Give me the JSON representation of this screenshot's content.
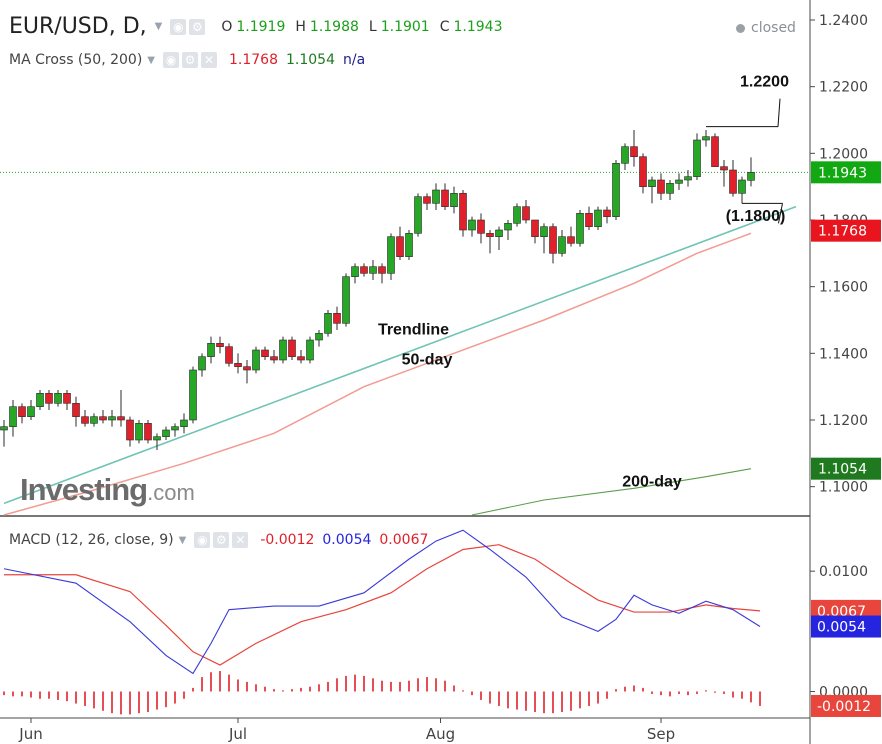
{
  "header": {
    "symbol": "EUR/USD, D,",
    "ohlc": [
      {
        "label": "O",
        "value": "1.1919"
      },
      {
        "label": "H",
        "value": "1.1988"
      },
      {
        "label": "L",
        "value": "1.1901"
      },
      {
        "label": "C",
        "value": "1.1943"
      }
    ],
    "market_status": "closed",
    "ma_indicator": {
      "name": "MA Cross (50, 200)",
      "values": [
        "1.1768",
        "1.1054",
        "n/a"
      ]
    },
    "macd_indicator": {
      "name": "MACD (12, 26, close, 9)",
      "values": [
        "-0.0012",
        "0.0054",
        "0.0067"
      ]
    }
  },
  "watermark": {
    "brand": "Investing",
    "suffix": ".com"
  },
  "colors": {
    "up": "#26a726",
    "down": "#e0212b",
    "trendline": "#6fc4b4",
    "ma50": "#f29b93",
    "ma200": "#5a9e4a",
    "macd": "#3a3ad8",
    "signal": "#e8453c",
    "hist": "#e0212b",
    "price_tag": "#11a811",
    "ma50_tag": "#e8141e",
    "ma200_tag": "#1f7a1f",
    "macd_tag": "#2525e0"
  },
  "chart_data": [
    {
      "type": "candlestick",
      "title": "EUR/USD, D",
      "x_labels": [
        "Jun",
        "Jul",
        "Aug",
        "Sep"
      ],
      "y_ticks": [
        "1.2400",
        "1.2200",
        "1.2000",
        "1.1800",
        "1.1600",
        "1.1400",
        "1.1200",
        "1.1000"
      ],
      "ylim": [
        1.0915,
        1.246
      ],
      "candles": [
        {
          "o": 1.117,
          "h": 1.12,
          "l": 1.112,
          "c": 1.118
        },
        {
          "o": 1.118,
          "h": 1.126,
          "l": 1.115,
          "c": 1.124
        },
        {
          "o": 1.124,
          "h": 1.125,
          "l": 1.119,
          "c": 1.121
        },
        {
          "o": 1.121,
          "h": 1.126,
          "l": 1.12,
          "c": 1.124
        },
        {
          "o": 1.124,
          "h": 1.129,
          "l": 1.123,
          "c": 1.128
        },
        {
          "o": 1.128,
          "h": 1.129,
          "l": 1.123,
          "c": 1.125
        },
        {
          "o": 1.125,
          "h": 1.129,
          "l": 1.124,
          "c": 1.128
        },
        {
          "o": 1.128,
          "h": 1.129,
          "l": 1.123,
          "c": 1.125
        },
        {
          "o": 1.125,
          "h": 1.127,
          "l": 1.118,
          "c": 1.121
        },
        {
          "o": 1.121,
          "h": 1.123,
          "l": 1.118,
          "c": 1.119
        },
        {
          "o": 1.119,
          "h": 1.122,
          "l": 1.118,
          "c": 1.121
        },
        {
          "o": 1.121,
          "h": 1.123,
          "l": 1.119,
          "c": 1.12
        },
        {
          "o": 1.12,
          "h": 1.123,
          "l": 1.118,
          "c": 1.121
        },
        {
          "o": 1.121,
          "h": 1.129,
          "l": 1.118,
          "c": 1.12
        },
        {
          "o": 1.12,
          "h": 1.121,
          "l": 1.112,
          "c": 1.114
        },
        {
          "o": 1.114,
          "h": 1.12,
          "l": 1.113,
          "c": 1.119
        },
        {
          "o": 1.119,
          "h": 1.12,
          "l": 1.113,
          "c": 1.114
        },
        {
          "o": 1.114,
          "h": 1.116,
          "l": 1.111,
          "c": 1.115
        },
        {
          "o": 1.115,
          "h": 1.118,
          "l": 1.114,
          "c": 1.117
        },
        {
          "o": 1.117,
          "h": 1.119,
          "l": 1.115,
          "c": 1.118
        },
        {
          "o": 1.118,
          "h": 1.122,
          "l": 1.116,
          "c": 1.12
        },
        {
          "o": 1.12,
          "h": 1.136,
          "l": 1.119,
          "c": 1.135
        },
        {
          "o": 1.135,
          "h": 1.14,
          "l": 1.133,
          "c": 1.139
        },
        {
          "o": 1.139,
          "h": 1.145,
          "l": 1.137,
          "c": 1.143
        },
        {
          "o": 1.143,
          "h": 1.145,
          "l": 1.14,
          "c": 1.142
        },
        {
          "o": 1.142,
          "h": 1.143,
          "l": 1.136,
          "c": 1.137
        },
        {
          "o": 1.137,
          "h": 1.14,
          "l": 1.134,
          "c": 1.136
        },
        {
          "o": 1.136,
          "h": 1.138,
          "l": 1.131,
          "c": 1.135
        },
        {
          "o": 1.135,
          "h": 1.142,
          "l": 1.134,
          "c": 1.141
        },
        {
          "o": 1.141,
          "h": 1.142,
          "l": 1.138,
          "c": 1.139
        },
        {
          "o": 1.139,
          "h": 1.141,
          "l": 1.137,
          "c": 1.138
        },
        {
          "o": 1.138,
          "h": 1.145,
          "l": 1.137,
          "c": 1.144
        },
        {
          "o": 1.144,
          "h": 1.145,
          "l": 1.138,
          "c": 1.139
        },
        {
          "o": 1.139,
          "h": 1.141,
          "l": 1.137,
          "c": 1.138
        },
        {
          "o": 1.138,
          "h": 1.145,
          "l": 1.137,
          "c": 1.144
        },
        {
          "o": 1.144,
          "h": 1.147,
          "l": 1.142,
          "c": 1.146
        },
        {
          "o": 1.146,
          "h": 1.153,
          "l": 1.145,
          "c": 1.152
        },
        {
          "o": 1.152,
          "h": 1.154,
          "l": 1.147,
          "c": 1.149
        },
        {
          "o": 1.149,
          "h": 1.164,
          "l": 1.148,
          "c": 1.163
        },
        {
          "o": 1.163,
          "h": 1.167,
          "l": 1.161,
          "c": 1.166
        },
        {
          "o": 1.166,
          "h": 1.167,
          "l": 1.163,
          "c": 1.164
        },
        {
          "o": 1.164,
          "h": 1.168,
          "l": 1.162,
          "c": 1.166
        },
        {
          "o": 1.166,
          "h": 1.167,
          "l": 1.161,
          "c": 1.164
        },
        {
          "o": 1.164,
          "h": 1.176,
          "l": 1.162,
          "c": 1.175
        },
        {
          "o": 1.175,
          "h": 1.178,
          "l": 1.168,
          "c": 1.169
        },
        {
          "o": 1.169,
          "h": 1.177,
          "l": 1.168,
          "c": 1.176
        },
        {
          "o": 1.176,
          "h": 1.188,
          "l": 1.175,
          "c": 1.187
        },
        {
          "o": 1.187,
          "h": 1.188,
          "l": 1.183,
          "c": 1.185
        },
        {
          "o": 1.185,
          "h": 1.191,
          "l": 1.183,
          "c": 1.189
        },
        {
          "o": 1.189,
          "h": 1.191,
          "l": 1.183,
          "c": 1.184
        },
        {
          "o": 1.184,
          "h": 1.19,
          "l": 1.182,
          "c": 1.188
        },
        {
          "o": 1.188,
          "h": 1.189,
          "l": 1.175,
          "c": 1.177
        },
        {
          "o": 1.177,
          "h": 1.181,
          "l": 1.175,
          "c": 1.18
        },
        {
          "o": 1.18,
          "h": 1.182,
          "l": 1.173,
          "c": 1.176
        },
        {
          "o": 1.176,
          "h": 1.177,
          "l": 1.17,
          "c": 1.175
        },
        {
          "o": 1.175,
          "h": 1.178,
          "l": 1.171,
          "c": 1.177
        },
        {
          "o": 1.177,
          "h": 1.18,
          "l": 1.174,
          "c": 1.179
        },
        {
          "o": 1.179,
          "h": 1.185,
          "l": 1.178,
          "c": 1.184
        },
        {
          "o": 1.184,
          "h": 1.186,
          "l": 1.179,
          "c": 1.18
        },
        {
          "o": 1.18,
          "h": 1.18,
          "l": 1.173,
          "c": 1.175
        },
        {
          "o": 1.175,
          "h": 1.179,
          "l": 1.17,
          "c": 1.178
        },
        {
          "o": 1.178,
          "h": 1.179,
          "l": 1.167,
          "c": 1.17
        },
        {
          "o": 1.17,
          "h": 1.177,
          "l": 1.169,
          "c": 1.175
        },
        {
          "o": 1.175,
          "h": 1.178,
          "l": 1.172,
          "c": 1.173
        },
        {
          "o": 1.173,
          "h": 1.183,
          "l": 1.172,
          "c": 1.182
        },
        {
          "o": 1.182,
          "h": 1.184,
          "l": 1.177,
          "c": 1.178
        },
        {
          "o": 1.178,
          "h": 1.184,
          "l": 1.177,
          "c": 1.183
        },
        {
          "o": 1.183,
          "h": 1.184,
          "l": 1.179,
          "c": 1.181
        },
        {
          "o": 1.181,
          "h": 1.198,
          "l": 1.18,
          "c": 1.197
        },
        {
          "o": 1.197,
          "h": 1.203,
          "l": 1.195,
          "c": 1.202
        },
        {
          "o": 1.202,
          "h": 1.207,
          "l": 1.196,
          "c": 1.199
        },
        {
          "o": 1.199,
          "h": 1.2,
          "l": 1.188,
          "c": 1.19
        },
        {
          "o": 1.19,
          "h": 1.193,
          "l": 1.185,
          "c": 1.192
        },
        {
          "o": 1.192,
          "h": 1.194,
          "l": 1.186,
          "c": 1.188
        },
        {
          "o": 1.188,
          "h": 1.192,
          "l": 1.186,
          "c": 1.191
        },
        {
          "o": 1.191,
          "h": 1.194,
          "l": 1.189,
          "c": 1.192
        },
        {
          "o": 1.192,
          "h": 1.195,
          "l": 1.19,
          "c": 1.193
        },
        {
          "o": 1.193,
          "h": 1.206,
          "l": 1.192,
          "c": 1.204
        },
        {
          "o": 1.204,
          "h": 1.207,
          "l": 1.202,
          "c": 1.205
        },
        {
          "o": 1.205,
          "h": 1.206,
          "l": 1.196,
          "c": 1.196
        },
        {
          "o": 1.196,
          "h": 1.198,
          "l": 1.19,
          "c": 1.195
        },
        {
          "o": 1.195,
          "h": 1.198,
          "l": 1.187,
          "c": 1.188
        },
        {
          "o": 1.188,
          "h": 1.193,
          "l": 1.185,
          "c": 1.192
        },
        {
          "o": 1.1919,
          "h": 1.1988,
          "l": 1.1901,
          "c": 1.1943
        }
      ],
      "ma50": [
        [
          0,
          1.0915
        ],
        [
          10,
          1.099
        ],
        [
          20,
          1.107
        ],
        [
          30,
          1.116
        ],
        [
          40,
          1.13
        ],
        [
          50,
          1.14
        ],
        [
          60,
          1.15
        ],
        [
          70,
          1.161
        ],
        [
          77,
          1.17
        ],
        [
          83,
          1.176
        ]
      ],
      "ma200": [
        [
          52,
          1.0915
        ],
        [
          60,
          1.096
        ],
        [
          70,
          1.0995
        ],
        [
          78,
          1.103
        ],
        [
          83,
          1.1054
        ]
      ],
      "trendline": {
        "x": [
          0,
          88
        ],
        "y": [
          1.095,
          1.184
        ]
      },
      "price_tags": [
        {
          "value": 1.1943,
          "label": "1.1943",
          "color": "price_tag"
        },
        {
          "value": 1.1768,
          "label": "1.1768",
          "color": "ma50_tag"
        },
        {
          "value": 1.1054,
          "label": "1.1054",
          "color": "ma200_tag"
        }
      ],
      "annotations": [
        {
          "text": "1.2200",
          "x": 84.5,
          "y": 1.22
        },
        {
          "text": "(1.1800)",
          "x": 83.5,
          "y": 1.1797
        },
        {
          "text": "Trendline",
          "x": 45.5,
          "y": 1.1457
        },
        {
          "text": "50-day",
          "x": 47,
          "y": 1.1366
        },
        {
          "text": "200-day",
          "x": 72,
          "y": 1.1
        }
      ],
      "levels": [
        {
          "y": 1.208,
          "x1": 78,
          "x2": 86,
          "y2": 1.208,
          "tip_x": 83,
          "tip_y": 1.215
        },
        {
          "y": 1.185,
          "x1": 82,
          "x2": 86.5,
          "y2": 1.185
        }
      ]
    },
    {
      "type": "line",
      "title": "MACD (12, 26, close, 9)",
      "ylim": [
        -0.0022,
        0.0145
      ],
      "y_ticks": [
        "0.0100",
        "0.0000"
      ],
      "series": [
        {
          "name": "MACD",
          "points": [
            [
              0,
              0.0102
            ],
            [
              8,
              0.009
            ],
            [
              14,
              0.0058
            ],
            [
              18,
              0.003
            ],
            [
              21,
              0.0015
            ],
            [
              23,
              0.004
            ],
            [
              25,
              0.0068
            ],
            [
              30,
              0.0071
            ],
            [
              35,
              0.0071
            ],
            [
              40,
              0.0082
            ],
            [
              45,
              0.011
            ],
            [
              48,
              0.0125
            ],
            [
              51,
              0.0134
            ],
            [
              54,
              0.0118
            ],
            [
              58,
              0.0095
            ],
            [
              62,
              0.0062
            ],
            [
              66,
              0.005
            ],
            [
              68,
              0.006
            ],
            [
              70,
              0.008
            ],
            [
              72,
              0.0072
            ],
            [
              75,
              0.0065
            ],
            [
              78,
              0.0075
            ],
            [
              81,
              0.0068
            ],
            [
              84,
              0.0054
            ]
          ]
        },
        {
          "name": "Signal",
          "points": [
            [
              0,
              0.0097
            ],
            [
              8,
              0.0097
            ],
            [
              14,
              0.0083
            ],
            [
              18,
              0.0055
            ],
            [
              21,
              0.0033
            ],
            [
              24,
              0.0022
            ],
            [
              28,
              0.004
            ],
            [
              33,
              0.0058
            ],
            [
              38,
              0.0068
            ],
            [
              43,
              0.0082
            ],
            [
              47,
              0.0102
            ],
            [
              51,
              0.0118
            ],
            [
              55,
              0.0122
            ],
            [
              59,
              0.011
            ],
            [
              63,
              0.009
            ],
            [
              66,
              0.0076
            ],
            [
              70,
              0.0066
            ],
            [
              74,
              0.0066
            ],
            [
              78,
              0.0072
            ],
            [
              81,
              0.0069
            ],
            [
              84,
              0.0067
            ]
          ]
        }
      ],
      "histogram": [
        -0.0003,
        -0.0004,
        -0.0004,
        -0.0005,
        -0.0006,
        -0.0006,
        -0.0007,
        -0.0008,
        -0.001,
        -0.0012,
        -0.0014,
        -0.0016,
        -0.0018,
        -0.0019,
        -0.0019,
        -0.0018,
        -0.0017,
        -0.0015,
        -0.0013,
        -0.001,
        -0.0006,
        0.0003,
        0.0012,
        0.0016,
        0.0017,
        0.0014,
        0.001,
        0.0008,
        0.0006,
        0.0004,
        0.0002,
        0.0001,
        0.0002,
        0.0003,
        0.0004,
        0.0006,
        0.0008,
        0.0011,
        0.0013,
        0.0014,
        0.0013,
        0.0011,
        0.0009,
        0.0008,
        0.0008,
        0.0009,
        0.0011,
        0.0012,
        0.0011,
        0.0009,
        0.0005,
        0.0001,
        -0.0003,
        -0.0007,
        -0.001,
        -0.0012,
        -0.0014,
        -0.0015,
        -0.0016,
        -0.0017,
        -0.0018,
        -0.0018,
        -0.0017,
        -0.0016,
        -0.0014,
        -0.0012,
        -0.001,
        -0.0006,
        0.0002,
        0.0004,
        0.0005,
        0.0003,
        -0.0002,
        -0.0003,
        -0.0004,
        -0.0002,
        -0.0003,
        -0.0002,
        0.0001,
        -0.0001,
        -0.0002,
        -0.0005,
        -0.0006,
        -0.0009,
        -0.0012
      ],
      "tags": [
        {
          "value": 0.0067,
          "label": "0.0067",
          "color": "signal"
        },
        {
          "value": 0.0054,
          "label": "0.0054",
          "color": "macd_tag"
        },
        {
          "value": -0.0012,
          "label": "-0.0012",
          "color": "signal"
        }
      ]
    }
  ]
}
